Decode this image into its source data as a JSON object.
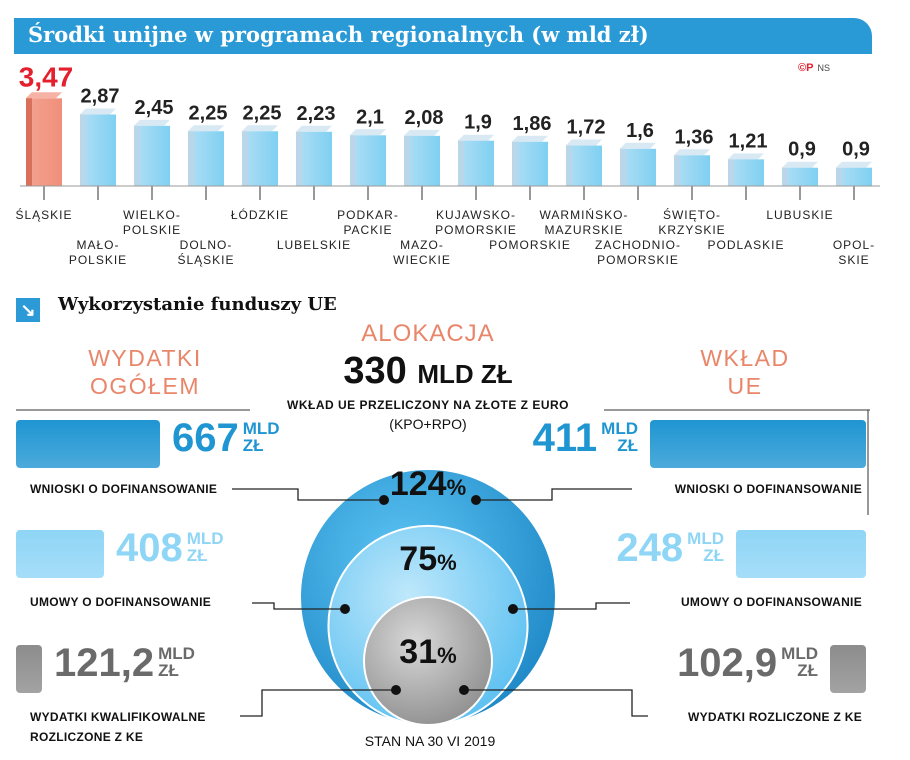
{
  "header": {
    "title": "Środki unijne w programach regionalnych (w mld zł)",
    "credit": "©P",
    "credit_author": "NS"
  },
  "chart_data": [
    {
      "type": "bar",
      "title": "Środki unijne w programach regionalnych (w mld zł)",
      "categories": [
        "Śląskie",
        "Mało-polskie",
        "Wielko-polskie",
        "Dolno-śląskie",
        "Łódzkie",
        "Lubelskie",
        "Podkar-packie",
        "Mazo-wieckie",
        "Kujawsko-Pomorskie",
        "Pomorskie",
        "Warmińsko-Mazurskie",
        "Zachodnio-pomorskie",
        "Święto-krzyskie",
        "Podlaskie",
        "Lubuskie",
        "Opol-skie"
      ],
      "label_lines": [
        [
          "Śląskie"
        ],
        [
          "Mało-",
          "polskie"
        ],
        [
          "Wielko-",
          "polskie"
        ],
        [
          "Dolno-",
          "śląskie"
        ],
        [
          "Łódzkie"
        ],
        [
          "Lubelskie"
        ],
        [
          "Podkar-",
          "packie"
        ],
        [
          "Mazo-",
          "wieckie"
        ],
        [
          "Kujawsko-",
          "Pomorskie"
        ],
        [
          "Pomorskie"
        ],
        [
          "Warmińsko-",
          "Mazurskie"
        ],
        [
          "Zachodnio-",
          "pomorskie"
        ],
        [
          "Święto-",
          "krzyskie"
        ],
        [
          "Podlaskie"
        ],
        [
          "Lubuskie"
        ],
        [
          "Opol-",
          "skie"
        ]
      ],
      "label_rows": [
        "upper",
        "lower",
        "upper",
        "lower",
        "upper",
        "lower",
        "upper",
        "lower",
        "upper",
        "lower",
        "upper",
        "lower",
        "upper",
        "lower",
        "upper",
        "lower"
      ],
      "values": [
        3.47,
        2.87,
        2.45,
        2.25,
        2.25,
        2.23,
        2.1,
        2.08,
        1.9,
        1.86,
        1.72,
        1.6,
        1.36,
        1.21,
        0.9,
        0.9
      ],
      "value_labels": [
        "3,47",
        "2,87",
        "2,45",
        "2,25",
        "2,25",
        "2,23",
        "2,1",
        "2,08",
        "1,9",
        "1,86",
        "1,72",
        "1,6",
        "1,36",
        "1,21",
        "0,9",
        "0,9"
      ],
      "highlight_index": 0,
      "colors": {
        "highlight": "#f08f7a",
        "bar": "#7fd0f2",
        "bar_side": "#b9d7e8",
        "bar_top": "#d9e9f3",
        "highlight_label": "#e4202e"
      }
    },
    {
      "type": "bar",
      "title": "Wykorzystanie funduszy UE",
      "categories": [
        "Wnioski o dofinansowanie",
        "Umowy o dofinansowanie",
        "Wydatki kwalifikowalne rozliczone z KE / Wydatki rozliczone z KE"
      ],
      "series": [
        {
          "name": "Wydatki ogółem",
          "values": [
            667,
            408,
            121.2
          ]
        },
        {
          "name": "Wkład UE",
          "values": [
            411,
            248,
            102.9
          ]
        }
      ],
      "unit": "mld zł",
      "allocation": 330,
      "shares_of_allocation_pct": [
        124,
        75,
        31
      ]
    }
  ],
  "funds": {
    "section_title": "Wykorzystanie funduszy UE",
    "section_icon": "arrow-down-right-icon",
    "allocation": {
      "heading": "ALOKACJA",
      "value": "330",
      "unit": "MLD ZŁ",
      "desc": "WKŁAD UE PRZELICZONY NA ZŁOTE Z EURO",
      "note": "(KPO+RPO)"
    },
    "left_heading": [
      "WYDATKI",
      "OGÓŁEM"
    ],
    "right_heading": [
      "WKŁAD",
      "UE"
    ],
    "unit_top": "MLD",
    "unit_bottom": "ZŁ",
    "rows": [
      {
        "left_value": "667",
        "right_value": "411",
        "percent": "124",
        "percent_sign": "%",
        "left_label": [
          "WNIOSKI O DOFINANSOWANIE"
        ],
        "right_label": [
          "WNIOSKI O DOFINANSOWANIE"
        ],
        "fill_left": 1.0,
        "fill_right": 1.0
      },
      {
        "left_value": "408",
        "right_value": "248",
        "percent": "75",
        "percent_sign": "%",
        "left_label": [
          "UMOWY O DOFINANSOWANIE"
        ],
        "right_label": [
          "UMOWY O DOFINANSOWANIE"
        ],
        "fill_left": 0.612,
        "fill_right": 0.603
      },
      {
        "left_value": "121,2",
        "right_value": "102,9",
        "percent": "31",
        "percent_sign": "%",
        "left_label": [
          "WYDATKI KWALIFIKOWALNE",
          "ROZLICZONE Z KE"
        ],
        "right_label": [
          "WYDATKI ROZLICZONE Z KE"
        ],
        "fill_left": 0.182,
        "fill_right": 0.25
      }
    ],
    "status": "STAN NA  30 VI 2019"
  },
  "colors": {
    "title_bar": "#2a9ad6",
    "accent_orange": "#e9866a",
    "blue_dark": "#1f95d2",
    "blue_mid": "#47b6ec",
    "blue_light": "#8fd5f6",
    "gray": "#8c8c8c",
    "text_dark": "#111111",
    "text_gray": "#6a6a6a"
  }
}
